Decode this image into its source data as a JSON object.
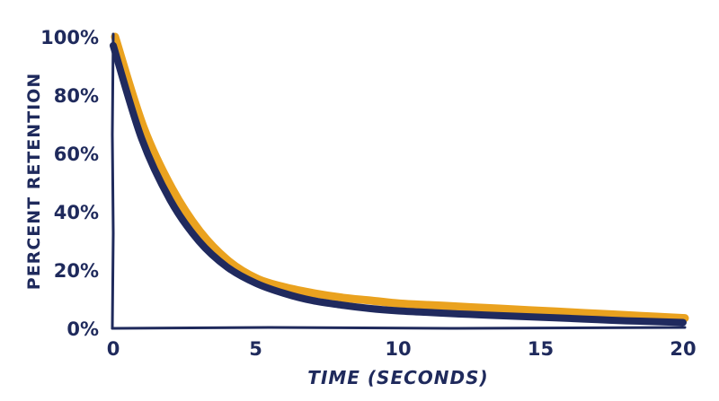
{
  "chart_data": {
    "type": "line",
    "title": "",
    "xlabel": "TIME (SECONDS)",
    "ylabel": "PERCENT RETENTION",
    "xlim": [
      0,
      20
    ],
    "ylim": [
      0,
      100
    ],
    "x_ticks": [
      0,
      5,
      10,
      15,
      20
    ],
    "x_tick_labels": [
      "0",
      "5",
      "10",
      "15",
      "20"
    ],
    "y_ticks": [
      0,
      20,
      40,
      60,
      80,
      100
    ],
    "y_tick_labels": [
      "0%",
      "20%",
      "40%",
      "60%",
      "80%",
      "100%"
    ],
    "grid": false,
    "legend": "none",
    "colors": {
      "axis": "#1f2a5c",
      "series_orange": "#eaa21f",
      "series_navy": "#202a5e"
    },
    "series": [
      {
        "color": "#eaa21f",
        "x": [
          0,
          1,
          2,
          3,
          4,
          5,
          6,
          7,
          8,
          9,
          10,
          11,
          12,
          13,
          14,
          15,
          16,
          17,
          18,
          19,
          20
        ],
        "values": [
          100,
          69,
          48,
          33,
          23,
          17,
          14,
          12,
          10.5,
          9.5,
          8.5,
          8,
          7.5,
          7,
          6.5,
          6,
          5.5,
          5,
          4.5,
          4,
          3.5
        ]
      },
      {
        "color": "#202a5e",
        "x": [
          0,
          1,
          2,
          3,
          4,
          5,
          6,
          7,
          8,
          9,
          10,
          11,
          12,
          13,
          14,
          15,
          16,
          17,
          18,
          19,
          20
        ],
        "values": [
          97,
          65,
          44,
          30,
          21,
          15.5,
          12,
          9.5,
          8,
          6.8,
          6,
          5.5,
          5,
          4.6,
          4.2,
          3.8,
          3.4,
          3,
          2.6,
          2.3,
          2
        ]
      }
    ]
  }
}
